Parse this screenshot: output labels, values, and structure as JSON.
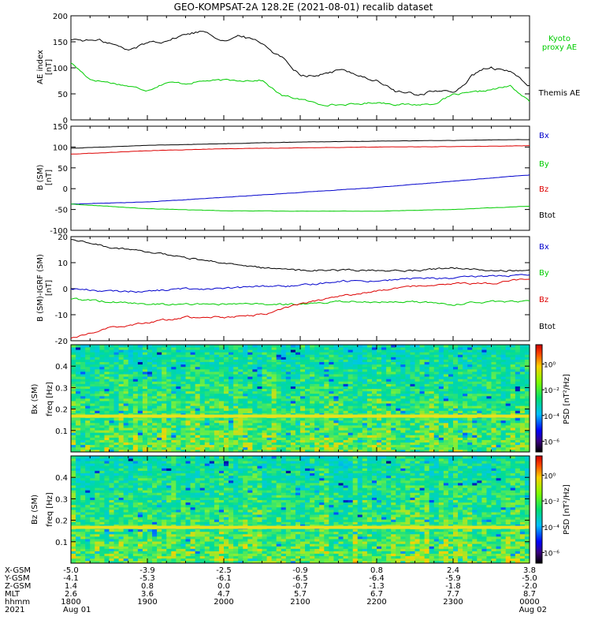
{
  "title": "GEO-KOMPSAT-2A 128.2E (2021-08-01) recalib dataset",
  "colors": {
    "black": "#000000",
    "red": "#dd0000",
    "green": "#00cc00",
    "blue": "#0000cc",
    "kyoto": "#00cc00"
  },
  "chart_data": [
    {
      "type": "line",
      "panel": "ae_index",
      "ylabel": "AE index",
      "yunit": "[nT]",
      "ylim": [
        0,
        200
      ],
      "yticks": [
        "0",
        "50",
        "100",
        "150",
        "200"
      ],
      "x": [
        "1800",
        "1815",
        "1830",
        "1845",
        "1900",
        "1915",
        "1930",
        "1945",
        "2000",
        "2015",
        "2030",
        "2045",
        "2100",
        "2115",
        "2130",
        "2145",
        "2200",
        "2215",
        "2230",
        "2245",
        "2300",
        "2315",
        "2330",
        "2345",
        "0000"
      ],
      "series": [
        {
          "name": "Kyoto proxy AE",
          "label_lines": [
            "Kyoto",
            "proxy AE"
          ],
          "color_key": "green",
          "values": [
            110,
            78,
            72,
            65,
            57,
            72,
            70,
            75,
            76,
            76,
            76,
            47,
            40,
            30,
            29,
            30,
            34,
            30,
            29,
            31,
            48,
            52,
            58,
            65,
            35
          ]
        },
        {
          "name": "Themis AE",
          "label_lines": [
            "Themis AE"
          ],
          "color_key": "black",
          "values": [
            155,
            153,
            148,
            132,
            148,
            155,
            165,
            172,
            156,
            160,
            148,
            122,
            90,
            88,
            95,
            88,
            76,
            55,
            47,
            58,
            50,
            85,
            100,
            90,
            68
          ]
        }
      ]
    },
    {
      "type": "line",
      "panel": "b_sm",
      "ylabel": "B (SM)",
      "yunit": "[nT]",
      "ylim": [
        -100,
        150
      ],
      "yticks": [
        "-100",
        "-50",
        "0",
        "50",
        "100",
        "150"
      ],
      "x": [
        "1800",
        "1900",
        "2000",
        "2100",
        "2200",
        "2300",
        "0000"
      ],
      "series": [
        {
          "name": "Bx",
          "color_key": "blue",
          "values": [
            -37,
            -32,
            -21,
            -9,
            3,
            18,
            33
          ]
        },
        {
          "name": "By",
          "color_key": "green",
          "values": [
            -37,
            -48,
            -53,
            -54,
            -54,
            -50,
            -42
          ]
        },
        {
          "name": "Bz",
          "color_key": "red",
          "values": [
            83,
            91,
            96,
            98,
            100,
            101,
            103
          ]
        },
        {
          "name": "Btot",
          "color_key": "black",
          "values": [
            97,
            104,
            108,
            112,
            114,
            116,
            118
          ]
        }
      ]
    },
    {
      "type": "line",
      "panel": "b_igrf",
      "ylabel": "B (SM)-IGRF (SM)",
      "yunit": "[nT]",
      "ylim": [
        -20,
        20
      ],
      "yticks": [
        "-20",
        "-10",
        "0",
        "10",
        "20"
      ],
      "x": [
        "1800",
        "1830",
        "1900",
        "1930",
        "2000",
        "2030",
        "2100",
        "2130",
        "2200",
        "2230",
        "2300",
        "2330",
        "0000"
      ],
      "series": [
        {
          "name": "Bx",
          "color_key": "blue",
          "values": [
            0,
            -1,
            -1,
            0,
            0,
            1,
            1,
            3,
            3,
            4,
            4,
            5,
            5
          ]
        },
        {
          "name": "By",
          "color_key": "green",
          "values": [
            -4,
            -5,
            -6,
            -6,
            -6,
            -6,
            -6,
            -5,
            -5,
            -5,
            -6,
            -5,
            -5
          ]
        },
        {
          "name": "Bz",
          "color_key": "red",
          "values": [
            -19,
            -15,
            -13,
            -11,
            -11,
            -10,
            -6,
            -3,
            -1,
            1,
            2,
            2,
            4
          ]
        },
        {
          "name": "Btot",
          "color_key": "black",
          "values": [
            19,
            16,
            14,
            12,
            10,
            8,
            7,
            7,
            7,
            7,
            8,
            7,
            7
          ]
        }
      ]
    },
    {
      "type": "heatmap",
      "panel": "spec_bx",
      "ylabel": "Bx (SM)",
      "ylabel2": "freq [Hz]",
      "ylim": [
        0,
        0.5
      ],
      "yticks": [
        "0.1",
        "0.2",
        "0.3",
        "0.4"
      ],
      "colorbar_label": "PSD [nT²/Hz]",
      "colorbar_ticks": [
        "10⁰",
        "10⁻²",
        "10⁻⁴",
        "10⁻⁶"
      ],
      "band_freq_hz": 0.167
    },
    {
      "type": "heatmap",
      "panel": "spec_bz",
      "ylabel": "Bz (SM)",
      "ylabel2": "freq [Hz]",
      "ylim": [
        0,
        0.5
      ],
      "yticks": [
        "0.1",
        "0.2",
        "0.3",
        "0.4"
      ],
      "colorbar_label": "PSD [nT²/Hz]",
      "colorbar_ticks": [
        "10⁰",
        "10⁻²",
        "10⁻⁴",
        "10⁻⁶"
      ],
      "band_freq_hz": 0.167
    }
  ],
  "ephemeris": {
    "row_labels": [
      "X-GSM",
      "Y-GSM",
      "Z-GSM",
      "MLT",
      "hhmm",
      "2021"
    ],
    "columns": [
      [
        "-5.0",
        "-4.1",
        "1.4",
        "2.6",
        "1800",
        "Aug 01"
      ],
      [
        "-3.9",
        "-5.3",
        "0.8",
        "3.6",
        "1900",
        ""
      ],
      [
        "-2.5",
        "-6.1",
        "0.0",
        "4.7",
        "2000",
        ""
      ],
      [
        "-0.9",
        "-6.5",
        "-0.7",
        "5.7",
        "2100",
        ""
      ],
      [
        "0.8",
        "-6.4",
        "-1.3",
        "6.7",
        "2200",
        ""
      ],
      [
        "2.4",
        "-5.9",
        "-1.8",
        "7.7",
        "2300",
        ""
      ],
      [
        "3.8",
        "-5.0",
        "-2.0",
        "8.7",
        "0000",
        "Aug 02"
      ]
    ]
  }
}
